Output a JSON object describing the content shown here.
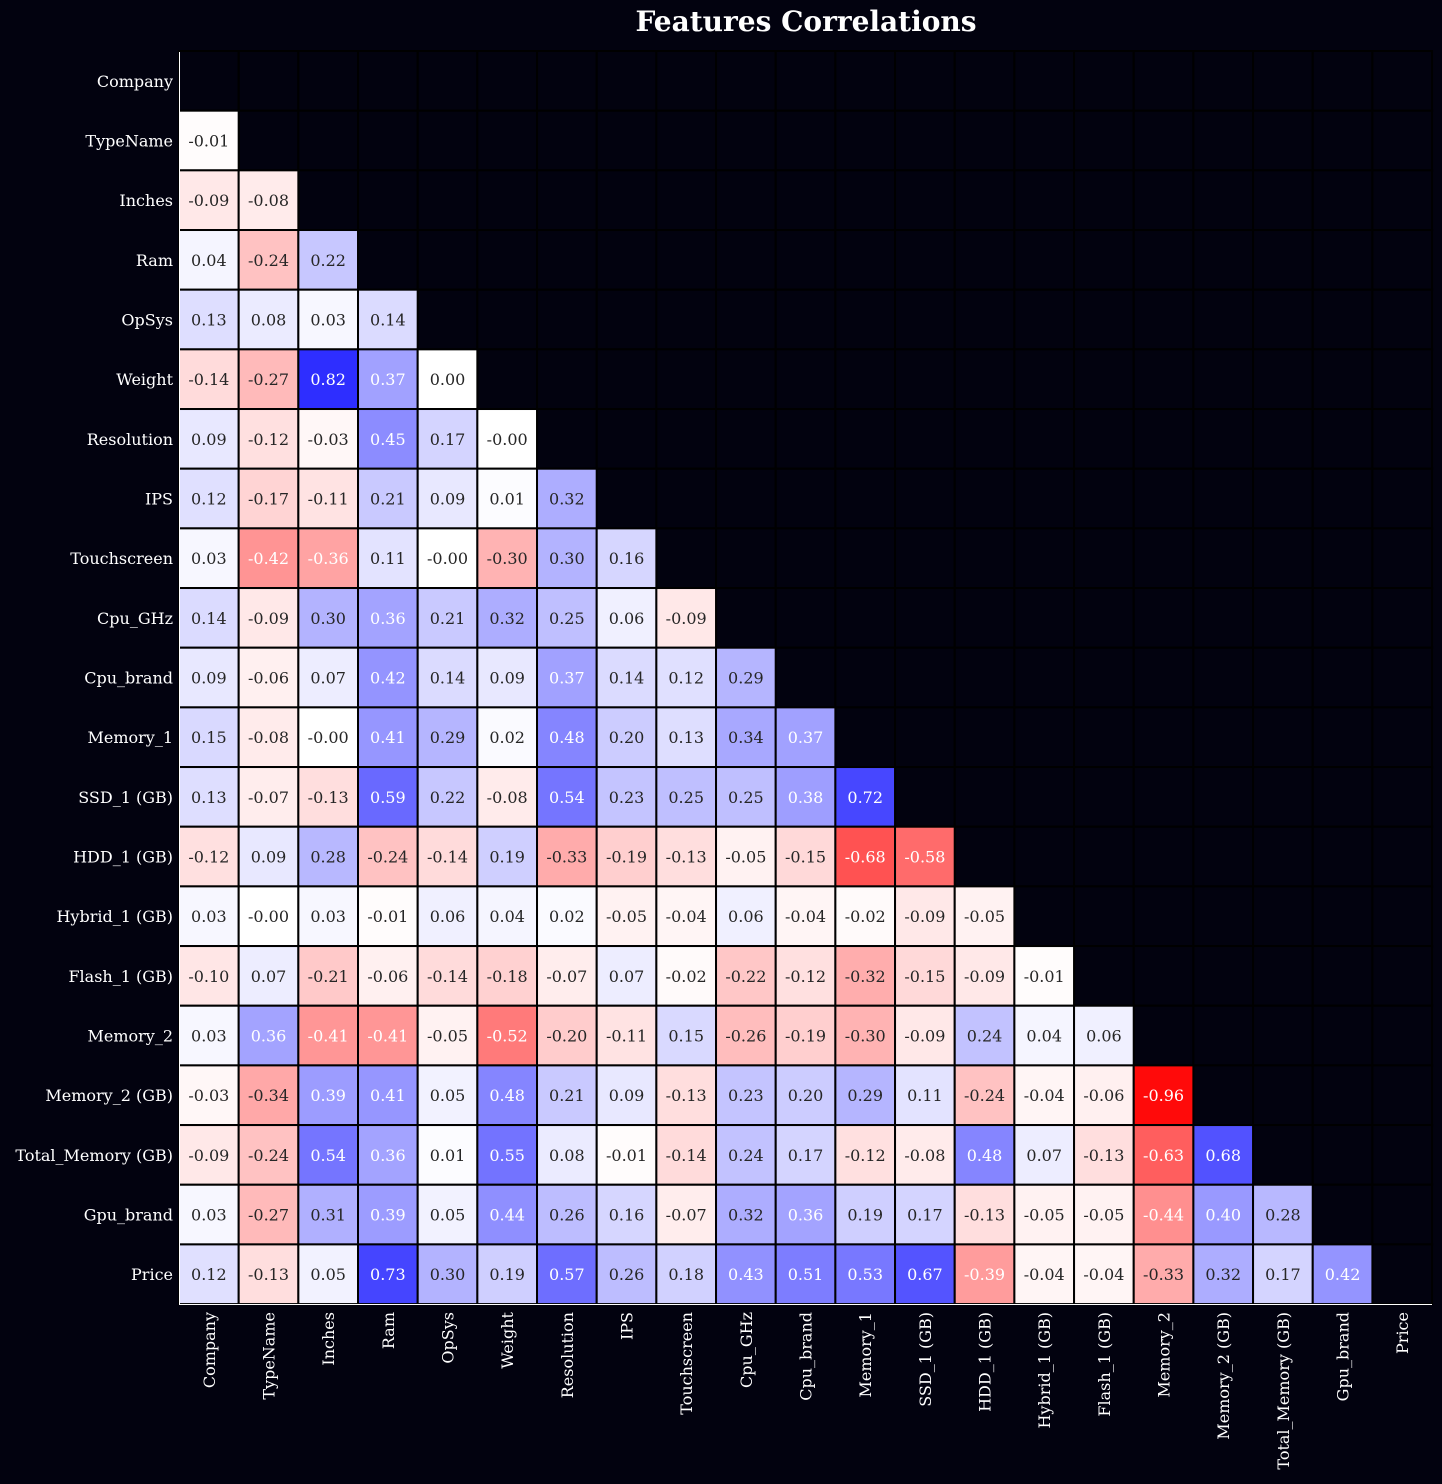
{
  "chart_data": {
    "type": "heatmap",
    "title": "Features Correlations",
    "xlabel": "",
    "ylabel": "",
    "colormap": "bwr_r",
    "color_range": [
      -1,
      1
    ],
    "colors": {
      "negative": "#ff0000",
      "zero": "#ffffff",
      "positive": "#0000ff",
      "background": "#02020f",
      "text_light": "#ffffff",
      "text_dark": "#262626"
    },
    "mask": "upper-triangle",
    "labels": [
      "Company",
      "TypeName",
      "Inches",
      "Ram",
      "OpSys",
      "Weight",
      "Resolution",
      "IPS",
      "Touchscreen",
      "Cpu_GHz",
      "Cpu_brand",
      "Memory_1",
      "SSD_1 (GB)",
      "HDD_1 (GB)",
      "Hybrid_1 (GB)",
      "Flash_1 (GB)",
      "Memory_2",
      "Memory_2 (GB)",
      "Total_Memory (GB)",
      "Gpu_brand",
      "Price"
    ],
    "values": [
      [],
      [
        "-0.01"
      ],
      [
        "-0.09",
        "-0.08"
      ],
      [
        "0.04",
        "-0.24",
        "0.22"
      ],
      [
        "0.13",
        "0.08",
        "0.03",
        "0.14"
      ],
      [
        "-0.14",
        "-0.27",
        "0.82",
        "0.37",
        "0.00"
      ],
      [
        "0.09",
        "-0.12",
        "-0.03",
        "0.45",
        "0.17",
        "-0.00"
      ],
      [
        "0.12",
        "-0.17",
        "-0.11",
        "0.21",
        "0.09",
        "0.01",
        "0.32"
      ],
      [
        "0.03",
        "-0.42",
        "-0.36",
        "0.11",
        "-0.00",
        "-0.30",
        "0.30",
        "0.16"
      ],
      [
        "0.14",
        "-0.09",
        "0.30",
        "0.36",
        "0.21",
        "0.32",
        "0.25",
        "0.06",
        "-0.09"
      ],
      [
        "0.09",
        "-0.06",
        "0.07",
        "0.42",
        "0.14",
        "0.09",
        "0.37",
        "0.14",
        "0.12",
        "0.29"
      ],
      [
        "0.15",
        "-0.08",
        "-0.00",
        "0.41",
        "0.29",
        "0.02",
        "0.48",
        "0.20",
        "0.13",
        "0.34",
        "0.37"
      ],
      [
        "0.13",
        "-0.07",
        "-0.13",
        "0.59",
        "0.22",
        "-0.08",
        "0.54",
        "0.23",
        "0.25",
        "0.25",
        "0.38",
        "0.72"
      ],
      [
        "-0.12",
        "0.09",
        "0.28",
        "-0.24",
        "-0.14",
        "0.19",
        "-0.33",
        "-0.19",
        "-0.13",
        "-0.05",
        "-0.15",
        "-0.68",
        "-0.58"
      ],
      [
        "0.03",
        "-0.00",
        "0.03",
        "-0.01",
        "0.06",
        "0.04",
        "0.02",
        "-0.05",
        "-0.04",
        "0.06",
        "-0.04",
        "-0.02",
        "-0.09",
        "-0.05"
      ],
      [
        "-0.10",
        "0.07",
        "-0.21",
        "-0.06",
        "-0.14",
        "-0.18",
        "-0.07",
        "0.07",
        "-0.02",
        "-0.22",
        "-0.12",
        "-0.32",
        "-0.15",
        "-0.09",
        "-0.01"
      ],
      [
        "0.03",
        "0.36",
        "-0.41",
        "-0.41",
        "-0.05",
        "-0.52",
        "-0.20",
        "-0.11",
        "0.15",
        "-0.26",
        "-0.19",
        "-0.30",
        "-0.09",
        "0.24",
        "0.04",
        "0.06"
      ],
      [
        "-0.03",
        "-0.34",
        "0.39",
        "0.41",
        "0.05",
        "0.48",
        "0.21",
        "0.09",
        "-0.13",
        "0.23",
        "0.20",
        "0.29",
        "0.11",
        "-0.24",
        "-0.04",
        "-0.06",
        "-0.96"
      ],
      [
        "-0.09",
        "-0.24",
        "0.54",
        "0.36",
        "0.01",
        "0.55",
        "0.08",
        "-0.01",
        "-0.14",
        "0.24",
        "0.17",
        "-0.12",
        "-0.08",
        "0.48",
        "0.07",
        "-0.13",
        "-0.63",
        "0.68"
      ],
      [
        "0.03",
        "-0.27",
        "0.31",
        "0.39",
        "0.05",
        "0.44",
        "0.26",
        "0.16",
        "-0.07",
        "0.32",
        "0.36",
        "0.19",
        "0.17",
        "-0.13",
        "-0.05",
        "-0.05",
        "-0.44",
        "0.40",
        "0.28"
      ],
      [
        "0.12",
        "-0.13",
        "0.05",
        "0.73",
        "0.30",
        "0.19",
        "0.57",
        "0.26",
        "0.18",
        "0.43",
        "0.51",
        "0.53",
        "0.67",
        "-0.39",
        "-0.04",
        "-0.04",
        "-0.33",
        "0.32",
        "0.17",
        "0.42"
      ]
    ]
  }
}
